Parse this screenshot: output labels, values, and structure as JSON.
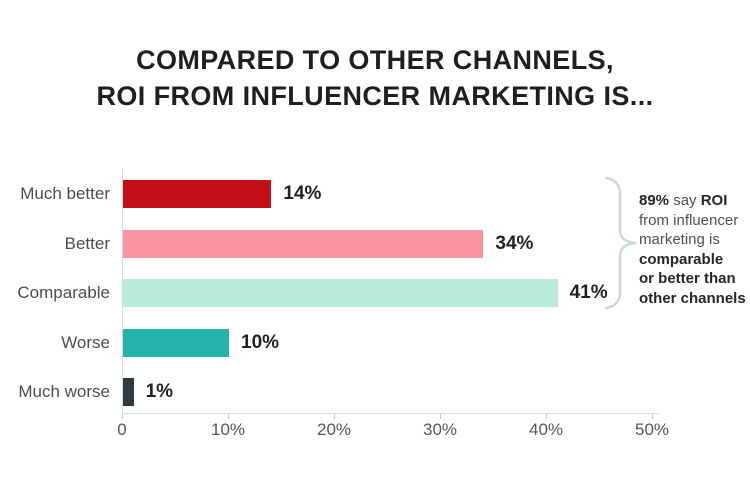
{
  "title": {
    "line1": "COMPARED TO OTHER CHANNELS,",
    "line2": "ROI FROM INFLUENCER MARKETING IS..."
  },
  "chart_data": {
    "type": "bar",
    "orientation": "horizontal",
    "title": "COMPARED TO OTHER CHANNELS, ROI FROM INFLUENCER MARKETING IS...",
    "categories": [
      "Much better",
      "Better",
      "Comparable",
      "Worse",
      "Much worse"
    ],
    "values": [
      14,
      34,
      41,
      10,
      1
    ],
    "value_labels": [
      "14%",
      "34%",
      "41%",
      "10%",
      "1%"
    ],
    "bar_colors": [
      "#c31018",
      "#f8939f",
      "#b9ecd9",
      "#22b1ab",
      "#2d3b44"
    ],
    "xlabel": "",
    "ylabel": "",
    "xlim": [
      0,
      50
    ],
    "x_tick_values": [
      0,
      10,
      20,
      30,
      40,
      50
    ],
    "x_tick_labels": [
      "0",
      "10%",
      "20%",
      "30%",
      "40%",
      "50%"
    ],
    "grid": false,
    "legend": false
  },
  "annotation": {
    "bracket_color": "#c9d9d5",
    "lines": [
      [
        {
          "text": "89%",
          "bold": true
        },
        {
          "text": " say ",
          "bold": false
        },
        {
          "text": "ROI",
          "bold": true
        }
      ],
      [
        {
          "text": "from influencer",
          "bold": false
        }
      ],
      [
        {
          "text": "marketing is",
          "bold": false
        }
      ],
      [
        {
          "text": "comparable",
          "bold": true
        }
      ],
      [
        {
          "text": "or better than",
          "bold": true
        }
      ],
      [
        {
          "text": "other channels",
          "bold": true
        }
      ]
    ]
  }
}
